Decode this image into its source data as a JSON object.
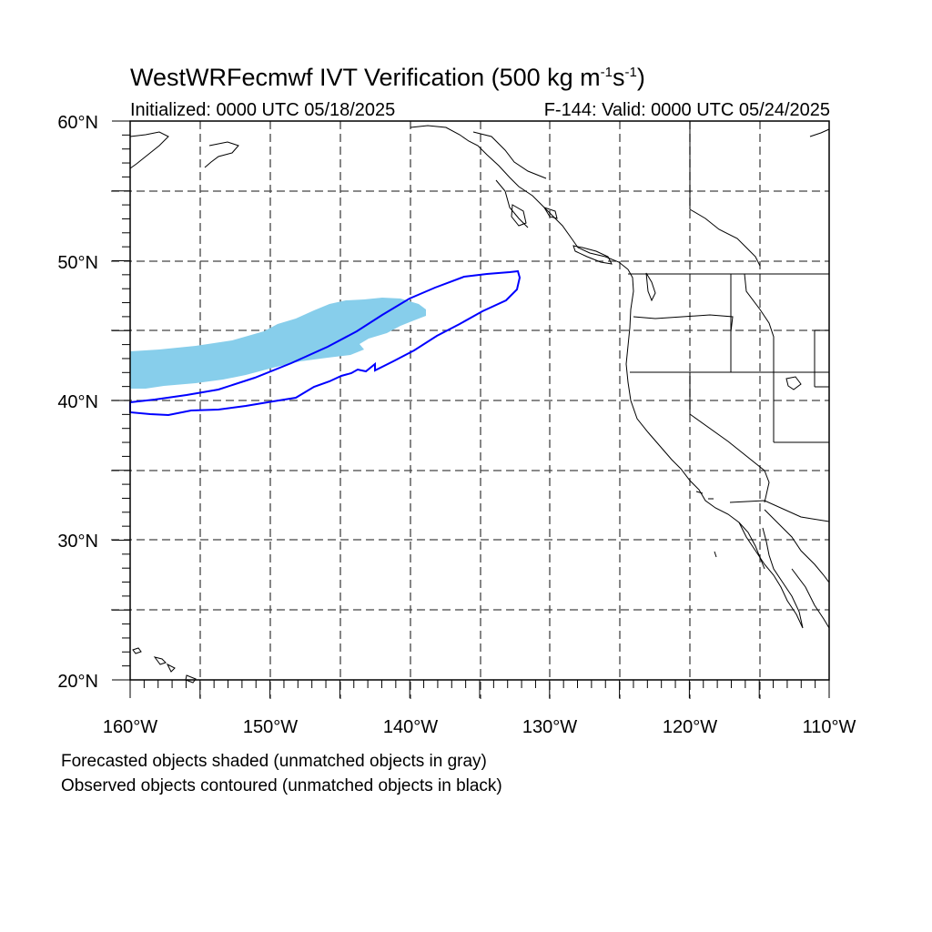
{
  "title": {
    "main": "WestWRFecmwf IVT Verification (500 kg m",
    "sup1": "-1",
    "mid": "s",
    "sup2": "-1",
    "end": ")"
  },
  "initialized": "Initialized: 0000 UTC 05/18/2025",
  "valid": "F-144: Valid: 0000 UTC 05/24/2025",
  "notes": {
    "forecast": "Forecasted objects shaded (unmatched objects in gray)",
    "observed": "Observed objects contoured (unmatched objects in black)"
  },
  "map": {
    "lon_range": [
      -160,
      -110
    ],
    "lat_range": [
      20,
      60
    ],
    "lat_labels": [
      "20°N",
      "30°N",
      "40°N",
      "50°N",
      "60°N"
    ],
    "lon_labels": [
      "160°W",
      "150°W",
      "140°W",
      "130°W",
      "120°W",
      "110°W"
    ],
    "gridlines": "dashed every 5°",
    "colors": {
      "forecast_shade": "#87ceeb",
      "observed_contour": "#0000ff",
      "coastline": "#000000"
    }
  }
}
